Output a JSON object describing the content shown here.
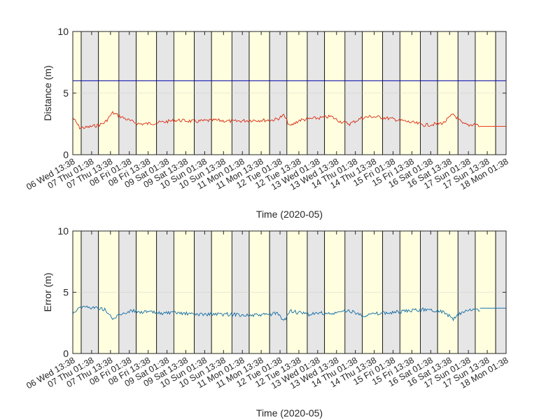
{
  "chart_data": [
    {
      "type": "line",
      "xlabel": "Time (2020-05)",
      "ylabel": "Distance (m)",
      "ylim": [
        0,
        10
      ],
      "yticks": [
        0,
        5,
        10
      ],
      "grid": true,
      "x_range": [
        "2020-05-06 13:38",
        "2020-05-18 01:38"
      ],
      "x_ticks": [
        "06 Wed 13:38",
        "07 Thu 01:38",
        "07 Thu 13:38",
        "08 Fri 01:38",
        "08 Fri 13:38",
        "09 Sat 01:38",
        "09 Sat 13:38",
        "10 Sun 01:38",
        "10 Sun 13:38",
        "11 Mon 01:38",
        "11 Mon 13:38",
        "12 Tue 01:38",
        "12 Tue 13:38",
        "13 Wed 01:38",
        "13 Wed 13:38",
        "14 Thu 01:38",
        "14 Thu 13:38",
        "15 Fri 01:38",
        "15 Fri 13:38",
        "16 Sat 01:38",
        "16 Sat 13:38",
        "17 Sun 01:38",
        "17 Sun 13:38",
        "18 Mon 01:38"
      ],
      "background_bands": {
        "day_color": "#ffffe0",
        "night_color": "#e6e6e6",
        "bands": [
          {
            "type": "day",
            "start": "2020-05-06 13:38",
            "end": "2020-05-06 19:00"
          },
          {
            "type": "night",
            "start": "2020-05-06 19:00",
            "end": "2020-05-07 06:00"
          },
          {
            "type": "day",
            "start": "2020-05-07 06:00",
            "end": "2020-05-07 19:00"
          },
          {
            "type": "night",
            "start": "2020-05-07 19:00",
            "end": "2020-05-08 06:00"
          },
          {
            "type": "day",
            "start": "2020-05-08 06:00",
            "end": "2020-05-08 19:00"
          },
          {
            "type": "night",
            "start": "2020-05-08 19:00",
            "end": "2020-05-09 06:00"
          },
          {
            "type": "day",
            "start": "2020-05-09 06:00",
            "end": "2020-05-09 19:00"
          },
          {
            "type": "night",
            "start": "2020-05-09 19:00",
            "end": "2020-05-10 06:00"
          },
          {
            "type": "day",
            "start": "2020-05-10 06:00",
            "end": "2020-05-10 19:00"
          },
          {
            "type": "night",
            "start": "2020-05-10 19:00",
            "end": "2020-05-11 06:00"
          },
          {
            "type": "day",
            "start": "2020-05-11 06:00",
            "end": "2020-05-11 19:00"
          },
          {
            "type": "night",
            "start": "2020-05-11 19:00",
            "end": "2020-05-12 06:00"
          },
          {
            "type": "day",
            "start": "2020-05-12 06:00",
            "end": "2020-05-12 19:00"
          },
          {
            "type": "night",
            "start": "2020-05-12 19:00",
            "end": "2020-05-13 06:00"
          },
          {
            "type": "day",
            "start": "2020-05-13 06:00",
            "end": "2020-05-13 19:00"
          },
          {
            "type": "night",
            "start": "2020-05-13 19:00",
            "end": "2020-05-14 06:00"
          },
          {
            "type": "day",
            "start": "2020-05-14 06:00",
            "end": "2020-05-14 19:00"
          },
          {
            "type": "night",
            "start": "2020-05-14 19:00",
            "end": "2020-05-15 06:00"
          },
          {
            "type": "day",
            "start": "2020-05-15 06:00",
            "end": "2020-05-15 19:00"
          },
          {
            "type": "night",
            "start": "2020-05-15 19:00",
            "end": "2020-05-16 06:00"
          },
          {
            "type": "day",
            "start": "2020-05-16 06:00",
            "end": "2020-05-16 19:00"
          },
          {
            "type": "night",
            "start": "2020-05-16 19:00",
            "end": "2020-05-17 06:00"
          },
          {
            "type": "day",
            "start": "2020-05-17 06:00",
            "end": "2020-05-17 19:00"
          },
          {
            "type": "night",
            "start": "2020-05-17 19:00",
            "end": "2020-05-18 01:38"
          }
        ]
      },
      "series": [
        {
          "color": "#d92b10",
          "x": [
            "2020-05-06 13:38",
            "2020-05-06 18:00",
            "2020-05-06 22:00",
            "2020-05-07 06:00",
            "2020-05-07 10:00",
            "2020-05-07 15:00",
            "2020-05-07 20:00",
            "2020-05-08 03:00",
            "2020-05-08 08:00",
            "2020-05-08 12:00",
            "2020-05-08 20:00",
            "2020-05-09 08:00",
            "2020-05-09 20:00",
            "2020-05-10 08:00",
            "2020-05-10 20:00",
            "2020-05-11 08:00",
            "2020-05-11 20:00",
            "2020-05-12 00:00",
            "2020-05-12 04:00",
            "2020-05-12 08:00",
            "2020-05-12 14:00",
            "2020-05-12 20:00",
            "2020-05-13 04:00",
            "2020-05-13 10:00",
            "2020-05-13 16:00",
            "2020-05-13 22:00",
            "2020-05-14 06:00",
            "2020-05-14 12:00",
            "2020-05-14 20:00",
            "2020-05-15 06:00",
            "2020-05-15 14:00",
            "2020-05-15 22:00",
            "2020-05-16 06:00",
            "2020-05-16 10:00",
            "2020-05-16 16:00",
            "2020-05-16 22:00",
            "2020-05-17 02:00",
            "2020-05-17 06:00",
            "2020-05-17 09:00"
          ],
          "values": [
            3.0,
            2.2,
            2.2,
            2.4,
            2.6,
            3.4,
            3.1,
            2.7,
            2.5,
            2.5,
            2.6,
            2.8,
            2.7,
            2.8,
            2.7,
            2.8,
            2.8,
            2.9,
            3.2,
            2.3,
            2.8,
            2.9,
            3.0,
            3.1,
            2.7,
            2.5,
            3.0,
            3.1,
            3.0,
            2.8,
            2.6,
            2.4,
            2.5,
            2.6,
            3.3,
            2.5,
            2.4,
            2.5,
            2.3
          ]
        },
        {
          "color": "#ec3d1f",
          "x": [
            "2020-05-17 09:00",
            "2020-05-18 01:38"
          ],
          "values": [
            2.3,
            2.3
          ]
        },
        {
          "color": "#0000aa",
          "x": [
            "2020-05-06 13:38",
            "2020-05-18 01:38"
          ],
          "values": [
            6.0,
            6.0
          ]
        }
      ]
    },
    {
      "type": "line",
      "xlabel": "Time (2020-05)",
      "ylabel": "Error (m)",
      "ylim": [
        0,
        10
      ],
      "yticks": [
        0,
        5,
        10
      ],
      "grid": true,
      "x_range": [
        "2020-05-06 13:38",
        "2020-05-18 01:38"
      ],
      "x_ticks": [
        "06 Wed 13:38",
        "07 Thu 01:38",
        "07 Thu 13:38",
        "08 Fri 01:38",
        "08 Fri 13:38",
        "09 Sat 01:38",
        "09 Sat 13:38",
        "10 Sun 01:38",
        "10 Sun 13:38",
        "11 Mon 01:38",
        "11 Mon 13:38",
        "12 Tue 01:38",
        "12 Tue 13:38",
        "13 Wed 01:38",
        "13 Wed 13:38",
        "14 Thu 01:38",
        "14 Thu 13:38",
        "15 Fri 01:38",
        "15 Fri 13:38",
        "16 Sat 01:38",
        "16 Sat 13:38",
        "17 Sun 01:38",
        "17 Sun 13:38",
        "18 Mon 01:38"
      ],
      "background_bands": "same as first chart",
      "series": [
        {
          "color": "#0f6aa3",
          "x": [
            "2020-05-06 13:38",
            "2020-05-06 18:00",
            "2020-05-06 22:00",
            "2020-05-07 06:00",
            "2020-05-07 10:00",
            "2020-05-07 15:00",
            "2020-05-07 20:00",
            "2020-05-08 03:00",
            "2020-05-08 08:00",
            "2020-05-08 12:00",
            "2020-05-08 20:00",
            "2020-05-09 08:00",
            "2020-05-09 20:00",
            "2020-05-10 08:00",
            "2020-05-10 20:00",
            "2020-05-11 08:00",
            "2020-05-11 20:00",
            "2020-05-12 00:00",
            "2020-05-12 04:00",
            "2020-05-12 08:00",
            "2020-05-12 14:00",
            "2020-05-12 20:00",
            "2020-05-13 04:00",
            "2020-05-13 10:00",
            "2020-05-13 16:00",
            "2020-05-13 22:00",
            "2020-05-14 06:00",
            "2020-05-14 12:00",
            "2020-05-14 20:00",
            "2020-05-15 06:00",
            "2020-05-15 14:00",
            "2020-05-15 22:00",
            "2020-05-16 06:00",
            "2020-05-16 10:00",
            "2020-05-16 16:00",
            "2020-05-16 22:00",
            "2020-05-17 02:00",
            "2020-05-17 06:00",
            "2020-05-17 09:00"
          ],
          "values": [
            3.3,
            3.8,
            3.8,
            3.7,
            3.6,
            2.8,
            3.2,
            3.5,
            3.4,
            3.4,
            3.3,
            3.3,
            3.2,
            3.2,
            3.2,
            3.1,
            3.2,
            3.3,
            2.6,
            3.5,
            3.3,
            3.2,
            3.3,
            3.2,
            3.4,
            3.5,
            3.1,
            3.2,
            3.3,
            3.4,
            3.5,
            3.6,
            3.5,
            3.4,
            2.8,
            3.4,
            3.5,
            3.6,
            3.5
          ]
        },
        {
          "color": "#1a75b0",
          "x": [
            "2020-05-17 09:00",
            "2020-05-18 01:38"
          ],
          "values": [
            3.7,
            3.7
          ]
        }
      ]
    }
  ]
}
